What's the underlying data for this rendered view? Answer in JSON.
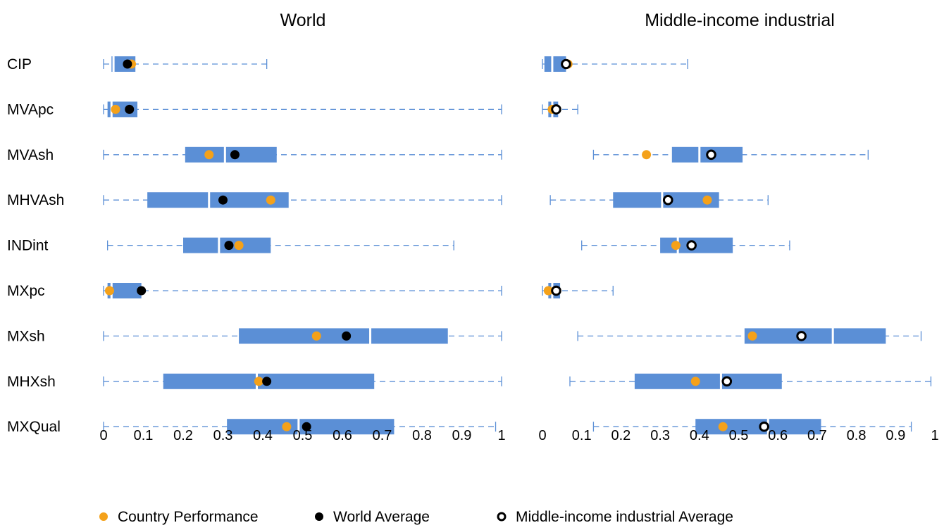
{
  "chart_data": [
    {
      "type": "box",
      "title": "World",
      "xlim": [
        0,
        1
      ],
      "ticks": [
        "0",
        "0.1",
        "0.2",
        "0.3",
        "0.4",
        "0.5",
        "0.6",
        "0.7",
        "0.8",
        "0.9",
        "1"
      ],
      "rows": [
        {
          "indicator": "CIP",
          "min": 0.0,
          "q1": 0.02,
          "median": 0.025,
          "q3": 0.08,
          "max": 0.41,
          "country": 0.07,
          "world_avg": 0.06
        },
        {
          "indicator": "MVApc",
          "min": 0.0,
          "q1": 0.01,
          "median": 0.02,
          "q3": 0.085,
          "max": 1.0,
          "country": 0.03,
          "world_avg": 0.065
        },
        {
          "indicator": "MVAsh",
          "min": 0.0,
          "q1": 0.205,
          "median": 0.305,
          "q3": 0.435,
          "max": 1.0,
          "country": 0.265,
          "world_avg": 0.33
        },
        {
          "indicator": "MHVAsh",
          "min": 0.0,
          "q1": 0.11,
          "median": 0.265,
          "q3": 0.465,
          "max": 1.0,
          "country": 0.42,
          "world_avg": 0.3
        },
        {
          "indicator": "INDint",
          "min": 0.01,
          "q1": 0.2,
          "median": 0.29,
          "q3": 0.42,
          "max": 0.88,
          "country": 0.34,
          "world_avg": 0.315
        },
        {
          "indicator": "MXpc",
          "min": 0.0,
          "q1": 0.01,
          "median": 0.02,
          "q3": 0.095,
          "max": 1.0,
          "country": 0.015,
          "world_avg": 0.095
        },
        {
          "indicator": "MXsh",
          "min": 0.0,
          "q1": 0.34,
          "median": 0.67,
          "q3": 0.865,
          "max": 1.0,
          "country": 0.535,
          "world_avg": 0.61
        },
        {
          "indicator": "MHXsh",
          "min": 0.0,
          "q1": 0.15,
          "median": 0.385,
          "q3": 0.68,
          "max": 1.0,
          "country": 0.39,
          "world_avg": 0.41
        },
        {
          "indicator": "MXQual",
          "min": 0.0,
          "q1": 0.31,
          "median": 0.49,
          "q3": 0.73,
          "max": 0.985,
          "country": 0.46,
          "world_avg": 0.51
        }
      ]
    },
    {
      "type": "box",
      "title": "Middle-income industrial",
      "xlim": [
        0,
        1
      ],
      "ticks": [
        "0",
        "0.1",
        "0.2",
        "0.3",
        "0.4",
        "0.5",
        "0.6",
        "0.7",
        "0.8",
        "0.9",
        "1"
      ],
      "rows": [
        {
          "indicator": "CIP",
          "min": 0.0,
          "q1": 0.005,
          "median": 0.025,
          "q3": 0.06,
          "max": 0.37,
          "country": 0.065,
          "group_avg": 0.06
        },
        {
          "indicator": "MVApc",
          "min": 0.0,
          "q1": 0.015,
          "median": 0.025,
          "q3": 0.04,
          "max": 0.09,
          "country": 0.025,
          "group_avg": 0.035
        },
        {
          "indicator": "MVAsh",
          "min": 0.13,
          "q1": 0.33,
          "median": 0.4,
          "q3": 0.51,
          "max": 0.83,
          "country": 0.265,
          "group_avg": 0.43
        },
        {
          "indicator": "MHVAsh",
          "min": 0.02,
          "q1": 0.18,
          "median": 0.305,
          "q3": 0.45,
          "max": 0.575,
          "country": 0.42,
          "group_avg": 0.32
        },
        {
          "indicator": "INDint",
          "min": 0.1,
          "q1": 0.3,
          "median": 0.345,
          "q3": 0.485,
          "max": 0.63,
          "country": 0.34,
          "group_avg": 0.38
        },
        {
          "indicator": "MXpc",
          "min": 0.0,
          "q1": 0.015,
          "median": 0.025,
          "q3": 0.045,
          "max": 0.18,
          "country": 0.015,
          "group_avg": 0.035
        },
        {
          "indicator": "MXsh",
          "min": 0.09,
          "q1": 0.515,
          "median": 0.74,
          "q3": 0.875,
          "max": 0.965,
          "country": 0.535,
          "group_avg": 0.66
        },
        {
          "indicator": "MHXsh",
          "min": 0.07,
          "q1": 0.235,
          "median": 0.455,
          "q3": 0.61,
          "max": 0.99,
          "country": 0.39,
          "group_avg": 0.47
        },
        {
          "indicator": "MXQual",
          "min": 0.13,
          "q1": 0.39,
          "median": 0.575,
          "q3": 0.71,
          "max": 0.94,
          "country": 0.46,
          "group_avg": 0.565
        }
      ]
    }
  ],
  "legend": {
    "placement": "bottom",
    "items": [
      {
        "label": "Country Performance",
        "marker": "orange-dot"
      },
      {
        "label": "World Average",
        "marker": "black-dot"
      },
      {
        "label": "Middle-income industrial Average",
        "marker": "black-ring"
      }
    ]
  },
  "colors": {
    "box": "#5b8fd6",
    "whisker": "#5b8fd6",
    "country": "#f4a11a",
    "average": "#000000"
  }
}
